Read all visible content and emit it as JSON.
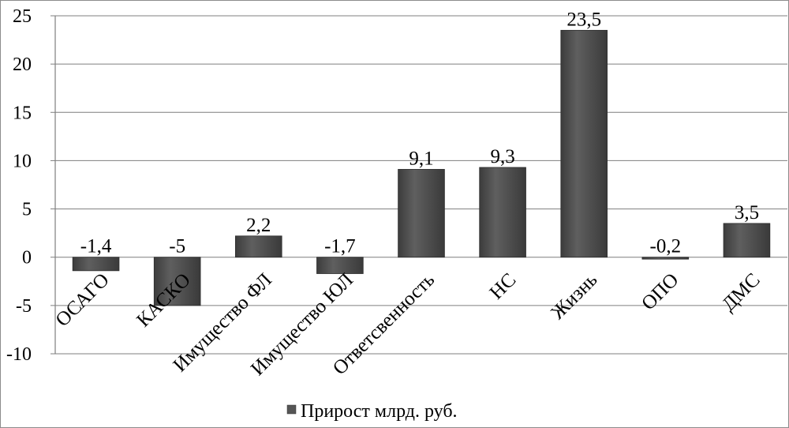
{
  "chart_data": {
    "type": "bar",
    "categories": [
      "ОСАГО",
      "КАСКО",
      "Имущество ФЛ",
      "Имущество ЮЛ",
      "Ответсвенность",
      "НС",
      "Жизнь",
      "ОПО",
      "ДМС"
    ],
    "series": [
      {
        "name": "Прирост млрд. руб.",
        "values": [
          -1.4,
          -5,
          2.2,
          -1.7,
          9.1,
          9.3,
          23.5,
          -0.2,
          3.5
        ],
        "value_labels": [
          "-1,4",
          "-5",
          "2,2",
          "-1,7",
          "9,1",
          "9,3",
          "23,5",
          "-0,2",
          "3,5"
        ],
        "color": "#555555"
      }
    ],
    "y_ticks": [
      25,
      20,
      15,
      10,
      5,
      0,
      -5,
      -10
    ],
    "y_tick_labels": [
      "25",
      "20",
      "15",
      "10",
      "5",
      "0",
      "-5",
      "-10"
    ],
    "ylim": [
      -10,
      25
    ],
    "grid": true,
    "legend_position": "bottom",
    "colors": {
      "bar": "#555555",
      "grid": "#7f7f7f",
      "axis": "#7f7f7f"
    }
  }
}
